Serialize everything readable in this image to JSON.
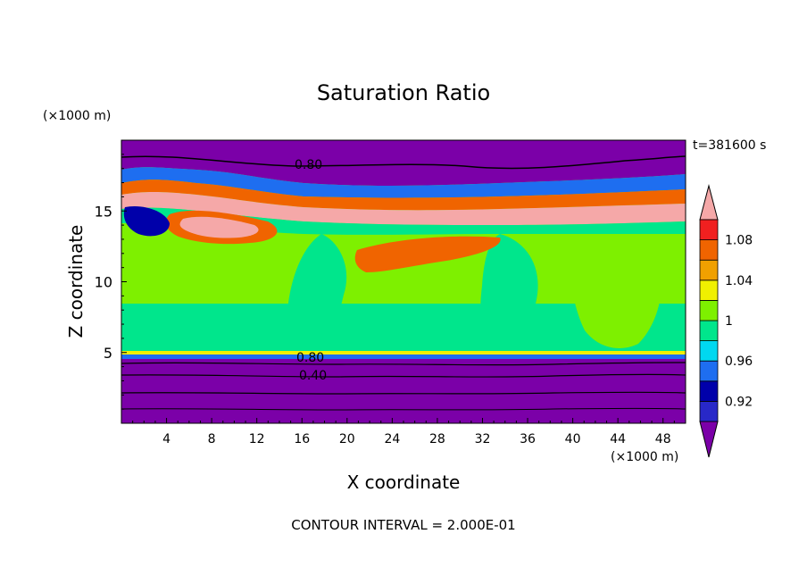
{
  "chart_data": {
    "type": "heatmap",
    "title": "Saturation Ratio",
    "xlabel": "X coordinate",
    "ylabel": "Z coordinate",
    "x_unit": "(×1000 m)",
    "y_unit": "(×1000 m)",
    "xlim": [
      0,
      50
    ],
    "ylim": [
      0,
      20
    ],
    "x_ticks": [
      "4",
      "8",
      "12",
      "16",
      "20",
      "24",
      "28",
      "32",
      "36",
      "40",
      "44",
      "48"
    ],
    "y_ticks": [
      "5",
      "10",
      "15"
    ],
    "time_label": "t=381600 s",
    "footer": "CONTOUR INTERVAL = 2.000E-01",
    "contour_labels": [
      "0.80",
      "0.80",
      "0.40"
    ],
    "colorbar": {
      "levels": [
        0.9,
        0.92,
        0.94,
        0.96,
        0.98,
        1.0,
        1.02,
        1.04,
        1.06,
        1.08,
        1.1
      ],
      "tick_labels": [
        "0.92",
        "0.96",
        "1",
        "1.04",
        "1.08"
      ],
      "colors": [
        "#7b00a8",
        "#2828c8",
        "#0000aa",
        "#1e6ef0",
        "#00d8f0",
        "#00e68c",
        "#7ef000",
        "#f0f000",
        "#f0a000",
        "#f06400",
        "#f02020",
        "#f5a8a8"
      ]
    },
    "grid": false
  }
}
